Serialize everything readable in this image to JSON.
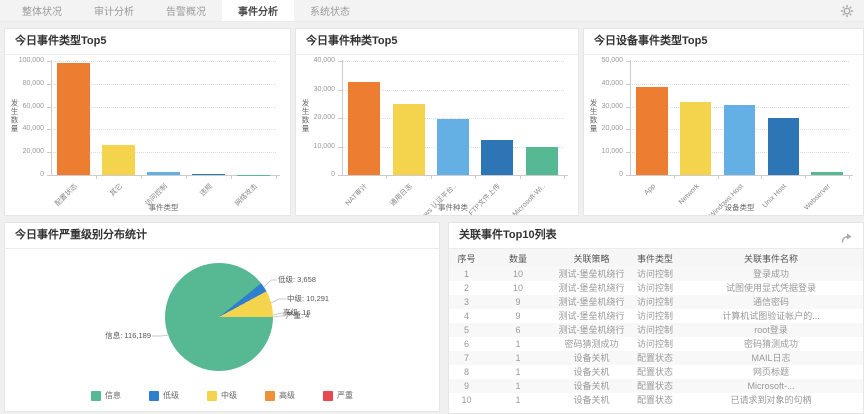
{
  "tabbar": {
    "tabs": [
      {
        "label": "整体状况"
      },
      {
        "label": "审计分析"
      },
      {
        "label": "告警概况"
      },
      {
        "label": "事件分析",
        "active": true
      },
      {
        "label": "系统状态"
      }
    ]
  },
  "colors": {
    "orange": "#ED7D31",
    "yellow": "#F4D44D",
    "light_blue": "#64B0E4",
    "dark_blue": "#2E75B6",
    "green": "#57B894",
    "red": "#E8484F",
    "pie_orange": "#ED9036",
    "pie_blue": "#2E7FD0"
  },
  "chart_data": [
    {
      "id": "event-type-top5",
      "type": "bar",
      "title": "今日事件类型Top5",
      "categories": [
        "配置状态",
        "其它",
        "访问控制",
        "违规",
        "网络攻击"
      ],
      "values": [
        98000,
        26200,
        2500,
        1100,
        300
      ],
      "bar_colors": [
        "#ED7D31",
        "#F4D44D",
        "#64B0E4",
        "#2E75B6",
        "#57B894"
      ],
      "xlabel": "事件类型",
      "ylabel": "发生数量",
      "ylim": [
        0,
        100000
      ],
      "ytick_step": 20000,
      "grid": "dotted-horizontal"
    },
    {
      "id": "event-kind-top5",
      "type": "bar",
      "title": "今日事件种类Top5",
      "categories": [
        "NAT审计",
        "通用日志",
        "Windows 认证平台..",
        "FTP文件上传",
        "Microsoft-Wi.."
      ],
      "values": [
        32800,
        24800,
        19500,
        12200,
        10000
      ],
      "bar_colors": [
        "#ED7D31",
        "#F4D44D",
        "#64B0E4",
        "#2E75B6",
        "#57B894"
      ],
      "xlabel": "事件种类",
      "ylabel": "发生数量",
      "ylim": [
        0,
        40000
      ],
      "ytick_step": 10000,
      "grid": "dotted-horizontal"
    },
    {
      "id": "device-type-top5",
      "type": "bar",
      "title": "今日设备事件类型Top5",
      "categories": [
        "App",
        "Network",
        "Windows Host",
        "Unix Host",
        "Webserver"
      ],
      "values": [
        38700,
        31900,
        30700,
        25200,
        1200
      ],
      "bar_colors": [
        "#ED7D31",
        "#F4D44D",
        "#64B0E4",
        "#2E75B6",
        "#57B894"
      ],
      "xlabel": "设备类型",
      "ylabel": "发生数量",
      "ylim": [
        0,
        50000
      ],
      "ytick_step": 10000,
      "grid": "dotted-horizontal"
    },
    {
      "id": "severity-pie",
      "type": "pie",
      "title": "今日事件严重级别分布统计",
      "labels": [
        "信息",
        "低级",
        "中级",
        "高级",
        "严重"
      ],
      "values": [
        116189,
        3658,
        10291,
        16,
        4
      ],
      "colors": [
        "#57B894",
        "#2E7FD0",
        "#F4D44D",
        "#ED9036",
        "#E8484F"
      ],
      "legend_position": "bottom"
    }
  ],
  "table": {
    "title": "关联事件Top10列表",
    "columns": [
      "序号",
      "数量",
      "关联策略",
      "事件类型",
      "关联事件名称"
    ],
    "rows": [
      [
        "1",
        "10",
        "测试-堡垒机绕行",
        "访问控制",
        "登录成功"
      ],
      [
        "2",
        "10",
        "测试-堡垒机绕行",
        "访问控制",
        "试图使用显式凭据登录"
      ],
      [
        "3",
        "9",
        "测试-堡垒机绕行",
        "访问控制",
        "通信密码"
      ],
      [
        "4",
        "9",
        "测试-堡垒机绕行",
        "访问控制",
        "计算机试图验证帐户的..."
      ],
      [
        "5",
        "6",
        "测试-堡垒机绕行",
        "访问控制",
        "root登录"
      ],
      [
        "6",
        "1",
        "密码猜测成功",
        "访问控制",
        "密码猜测成功"
      ],
      [
        "7",
        "1",
        "设备关机",
        "配置状态",
        "MAIL日志"
      ],
      [
        "8",
        "1",
        "设备关机",
        "配置状态",
        "网页标题"
      ],
      [
        "9",
        "1",
        "设备关机",
        "配置状态",
        "Microsoft-..."
      ],
      [
        "10",
        "1",
        "设备关机",
        "配置状态",
        "已请求到对象的句柄"
      ]
    ]
  }
}
